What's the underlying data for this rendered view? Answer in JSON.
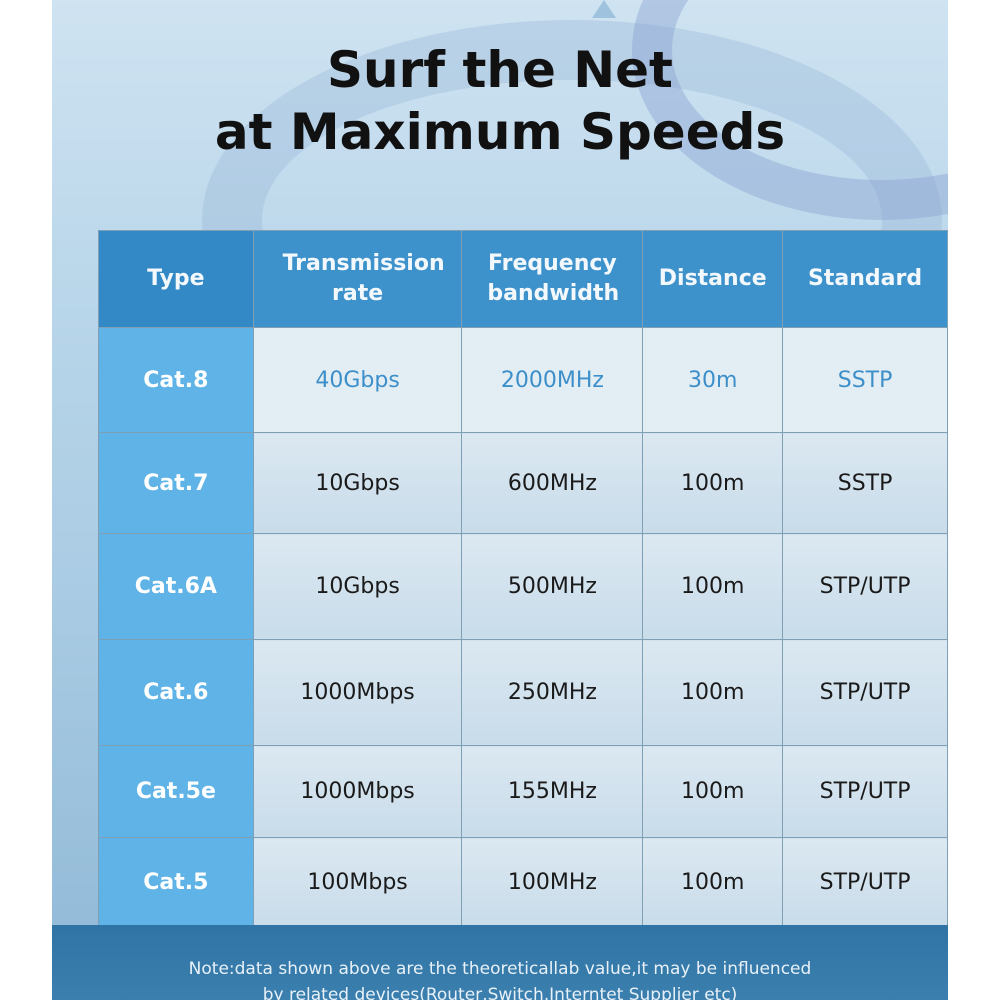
{
  "title_line1": "Surf the Net",
  "title_line2": "at Maximum Speeds",
  "colors": {
    "header": "#3e92cb",
    "type_column": "#5fb3e6",
    "highlight_text": "#3d8fca",
    "note_band": "#2f74a5"
  },
  "table": {
    "headers": [
      "Type",
      "Transmission rate",
      "Frequency bandwidth",
      "Distance",
      "Standard"
    ],
    "rows": [
      [
        "Cat.8",
        "40Gbps",
        "2000MHz",
        "30m",
        "SSTP"
      ],
      [
        "Cat.7",
        "10Gbps",
        "600MHz",
        "100m",
        "SSTP"
      ],
      [
        "Cat.6A",
        "10Gbps",
        "500MHz",
        "100m",
        "STP/UTP"
      ],
      [
        "Cat.6",
        "1000Mbps",
        "250MHz",
        "100m",
        "STP/UTP"
      ],
      [
        "Cat.5e",
        "1000Mbps",
        "155MHz",
        "100m",
        "STP/UTP"
      ],
      [
        "Cat.5",
        "100Mbps",
        "100MHz",
        "100m",
        "STP/UTP"
      ]
    ]
  },
  "note_line1": "Note:data shown above are the theoreticallab value,it may be influenced",
  "note_line2": "by related devices(Router,Switch,Interntet Supplier etc)"
}
